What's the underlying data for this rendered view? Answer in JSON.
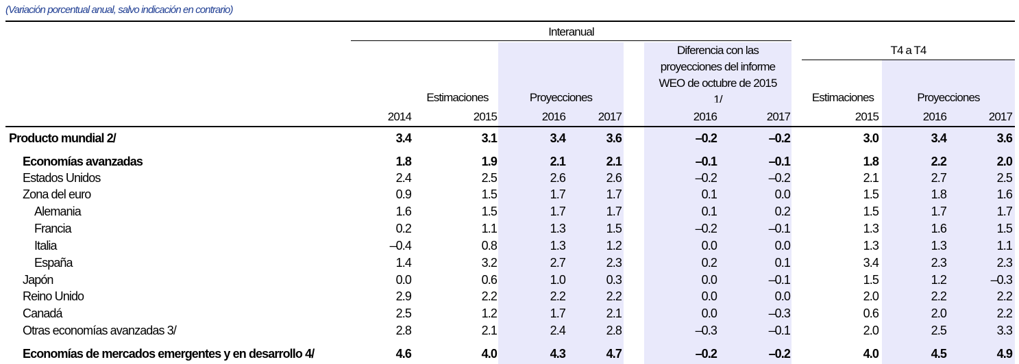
{
  "subtitle": "(Variación porcentual anual, salvo indicación en contrario)",
  "header": {
    "interanual": "Interanual",
    "diff_line1": "Diferencia con las",
    "diff_line2": "proyecciones del informe",
    "diff_line3": "WEO de octubre de 2015",
    "diff_note": "1/",
    "t4": "T4 a T4",
    "estimaciones": "Estimaciones",
    "proyecciones": "Proyecciones",
    "years": [
      "2014",
      "2015",
      "2016",
      "2017",
      "2016",
      "2017",
      "2015",
      "2016",
      "2017"
    ]
  },
  "colors": {
    "shade": "#e9e9fb",
    "subtitle": "#1f3e93"
  },
  "rows": [
    {
      "label": "Producto mundial 2/",
      "bold": true,
      "indent": 0,
      "values": [
        "3.4",
        "3.1",
        "3.4",
        "3.6",
        "–0.2",
        "–0.2",
        "3.0",
        "3.4",
        "3.6"
      ]
    },
    {
      "label": "Economías avanzadas",
      "bold": true,
      "indent": 1,
      "values": [
        "1.8",
        "1.9",
        "2.1",
        "2.1",
        "–0.1",
        "–0.1",
        "1.8",
        "2.2",
        "2.0"
      ]
    },
    {
      "label": "Estados Unidos",
      "bold": false,
      "indent": 1,
      "values": [
        "2.4",
        "2.5",
        "2.6",
        "2.6",
        "–0.2",
        "–0.2",
        "2.1",
        "2.7",
        "2.5"
      ]
    },
    {
      "label": "Zona del euro",
      "bold": false,
      "indent": 1,
      "values": [
        "0.9",
        "1.5",
        "1.7",
        "1.7",
        "0.1",
        "0.0",
        "1.5",
        "1.8",
        "1.6"
      ]
    },
    {
      "label": "Alemania",
      "bold": false,
      "indent": 2,
      "values": [
        "1.6",
        "1.5",
        "1.7",
        "1.7",
        "0.1",
        "0.2",
        "1.5",
        "1.7",
        "1.7"
      ]
    },
    {
      "label": "Francia",
      "bold": false,
      "indent": 2,
      "values": [
        "0.2",
        "1.1",
        "1.3",
        "1.5",
        "–0.2",
        "–0.1",
        "1.3",
        "1.6",
        "1.5"
      ]
    },
    {
      "label": "Italia",
      "bold": false,
      "indent": 2,
      "values": [
        "–0.4",
        "0.8",
        "1.3",
        "1.2",
        "0.0",
        "0.0",
        "1.3",
        "1.3",
        "1.1"
      ]
    },
    {
      "label": "España",
      "bold": false,
      "indent": 2,
      "values": [
        "1.4",
        "3.2",
        "2.7",
        "2.3",
        "0.2",
        "0.1",
        "3.4",
        "2.3",
        "2.3"
      ]
    },
    {
      "label": "Japón",
      "bold": false,
      "indent": 1,
      "values": [
        "0.0",
        "0.6",
        "1.0",
        "0.3",
        "0.0",
        "–0.1",
        "1.5",
        "1.2",
        "–0.3"
      ]
    },
    {
      "label": "Reino Unido",
      "bold": false,
      "indent": 1,
      "values": [
        "2.9",
        "2.2",
        "2.2",
        "2.2",
        "0.0",
        "0.0",
        "2.0",
        "2.2",
        "2.2"
      ]
    },
    {
      "label": "Canadá",
      "bold": false,
      "indent": 1,
      "values": [
        "2.5",
        "1.2",
        "1.7",
        "2.1",
        "0.0",
        "–0.3",
        "0.6",
        "2.0",
        "2.2"
      ]
    },
    {
      "label": "Otras economías avanzadas 3/",
      "bold": false,
      "indent": 1,
      "values": [
        "2.8",
        "2.1",
        "2.4",
        "2.8",
        "–0.3",
        "–0.1",
        "2.0",
        "2.5",
        "3.3"
      ]
    },
    {
      "label": "Economías de mercados emergentes y en desarrollo 4/",
      "bold": true,
      "indent": 1,
      "values": [
        "4.6",
        "4.0",
        "4.3",
        "4.7",
        "–0.2",
        "–0.2",
        "4.0",
        "4.5",
        "4.9"
      ]
    }
  ]
}
